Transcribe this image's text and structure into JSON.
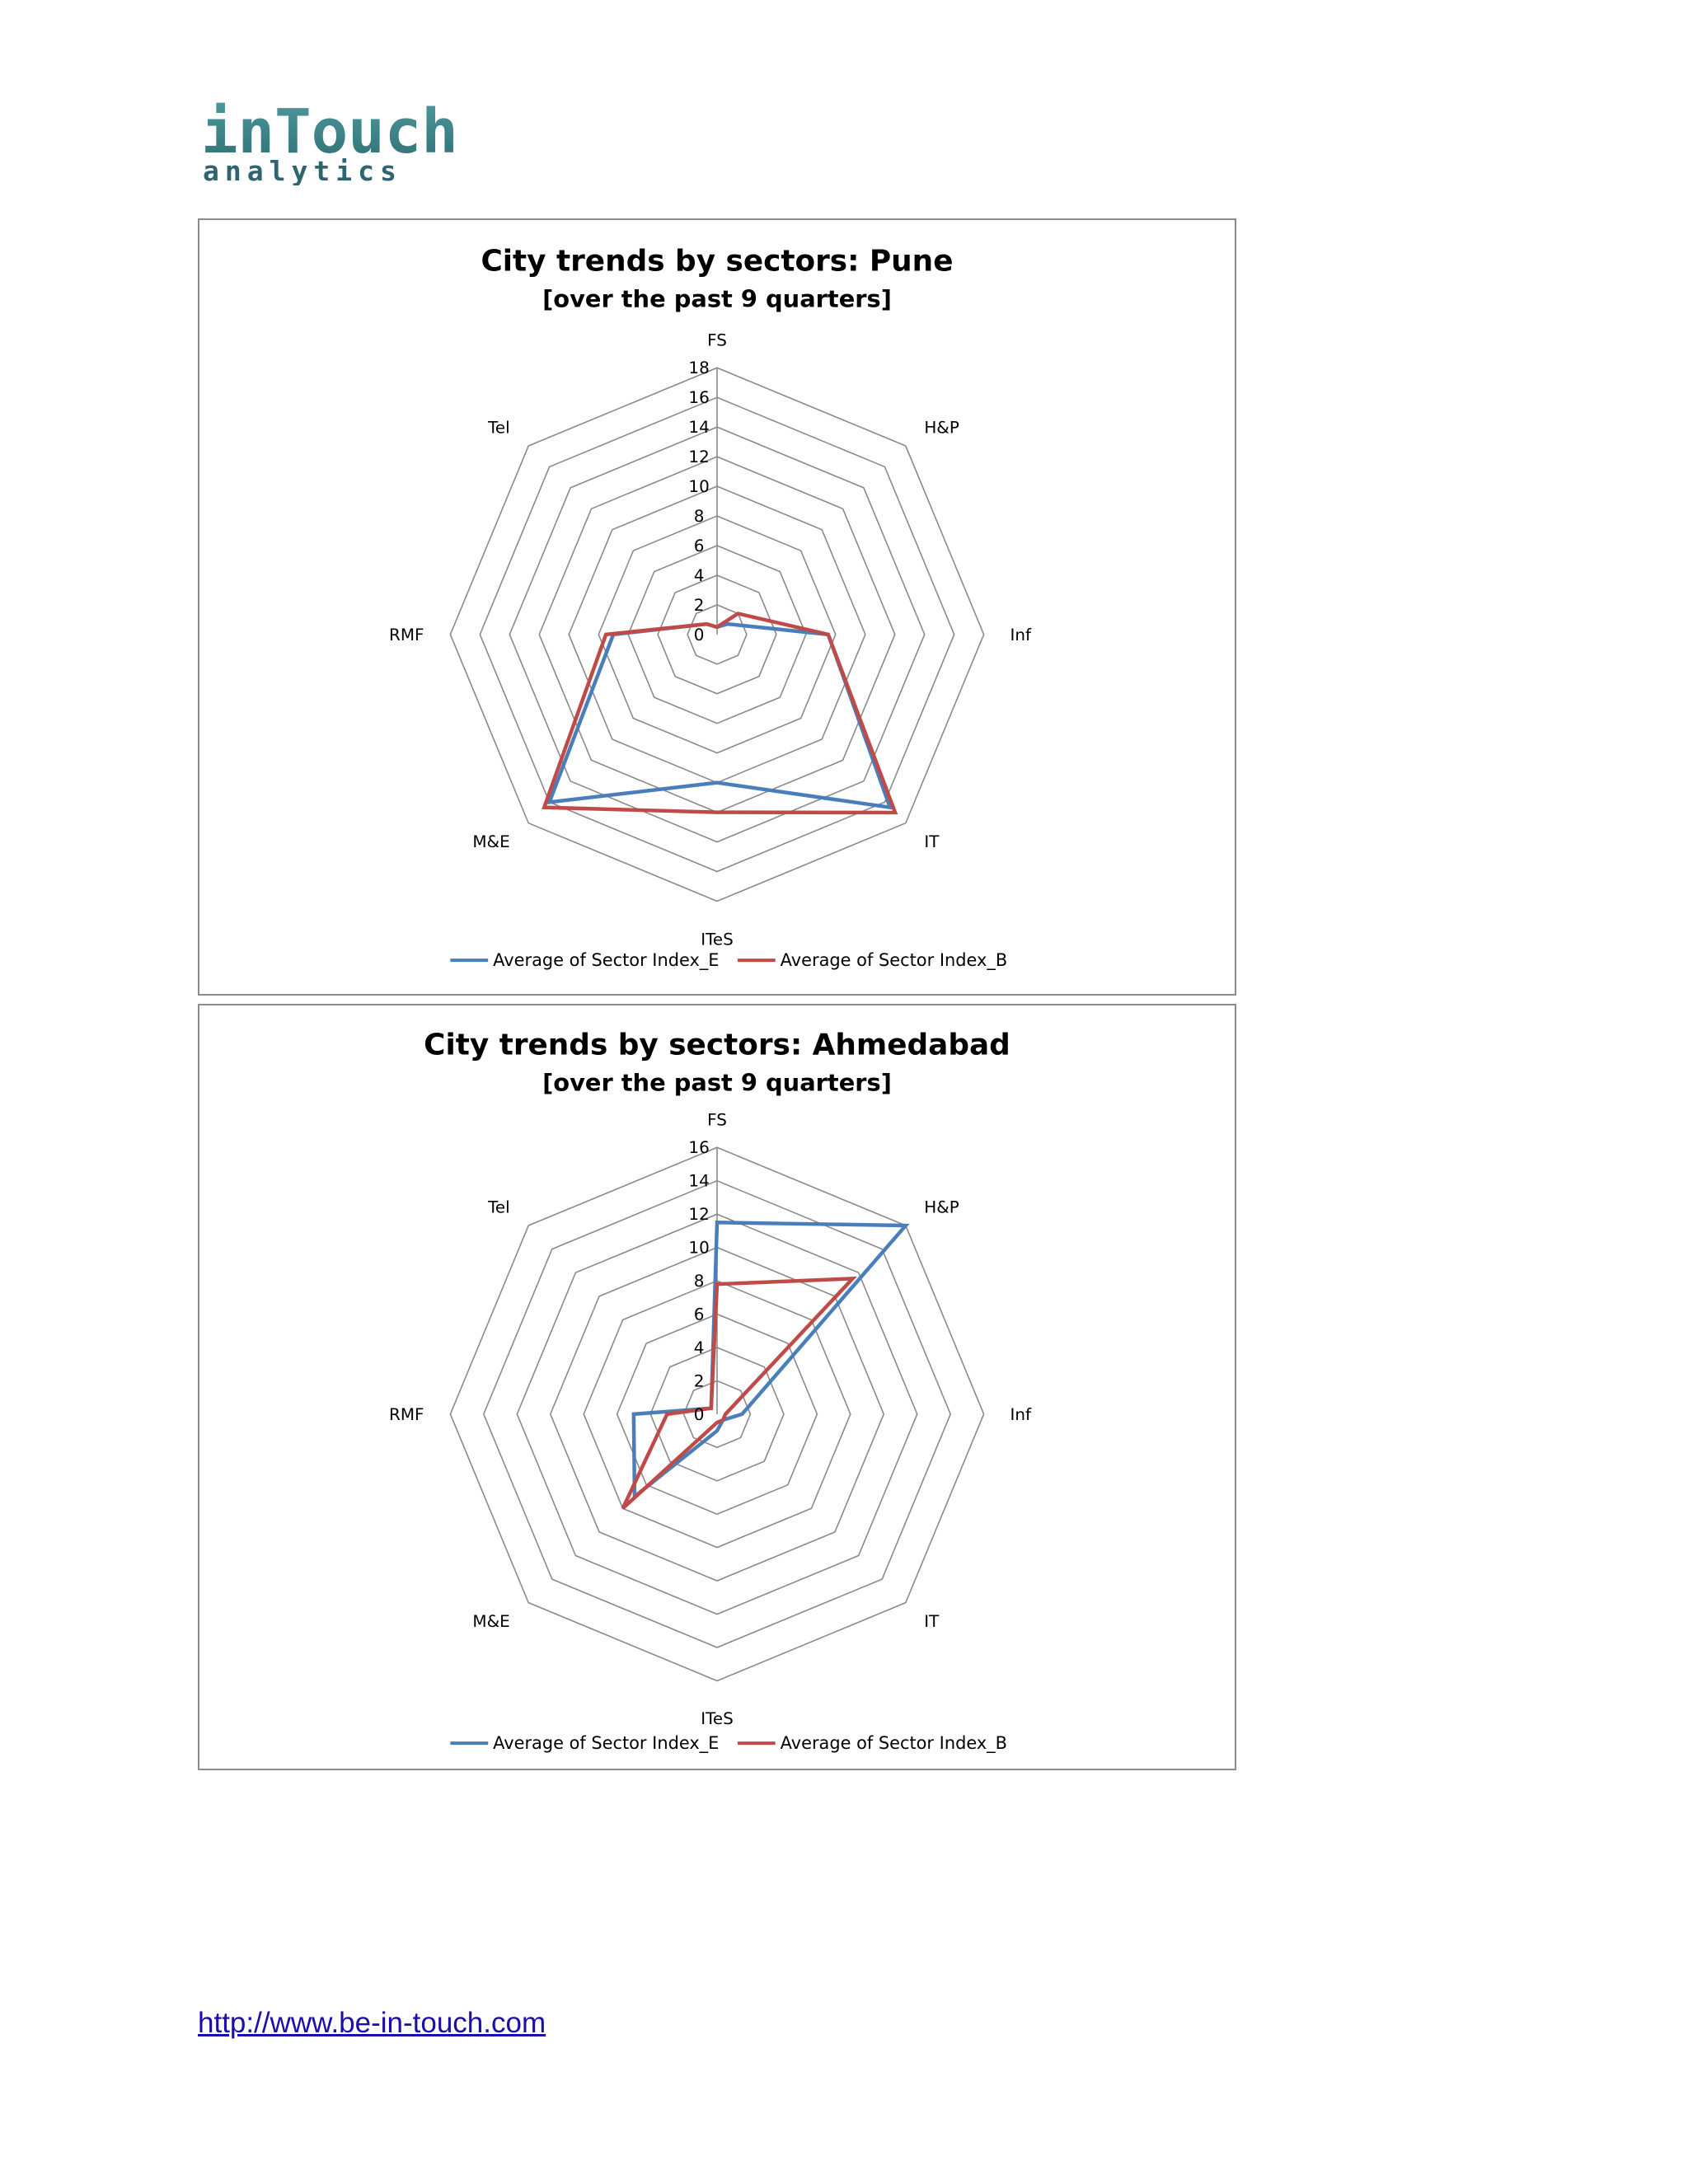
{
  "logo": {
    "line1": "inTouch",
    "line2": "analytics"
  },
  "footer": {
    "link_text": "http://www.be-in-touch.com"
  },
  "colors": {
    "series_e": "#4a7ebb",
    "series_b": "#be4b48",
    "grid": "#8a8a8a"
  },
  "chart_data": [
    {
      "type": "radar",
      "title": "City trends by sectors: Pune",
      "subtitle": "[over the past 9 quarters]",
      "categories": [
        "FS",
        "H&P",
        "Inf",
        "IT",
        "ITeS",
        "M&E",
        "RMF",
        "Tel"
      ],
      "ticks": [
        0,
        2,
        4,
        6,
        8,
        10,
        12,
        14,
        16,
        18
      ],
      "rlim": [
        0,
        18
      ],
      "grid": true,
      "legend_position": "bottom",
      "series": [
        {
          "name": "Average of Sector Index_E",
          "color": "#4a7ebb",
          "values": [
            0.5,
            1.0,
            7.5,
            16.5,
            10.0,
            16.0,
            7.0,
            1.0
          ]
        },
        {
          "name": "Average of Sector Index_B",
          "color": "#be4b48",
          "values": [
            0.5,
            2.0,
            7.5,
            17.0,
            12.0,
            16.5,
            7.5,
            1.0
          ]
        }
      ]
    },
    {
      "type": "radar",
      "title": "City trends by sectors: Ahmedabad",
      "subtitle": "[over the past 9 quarters]",
      "categories": [
        "FS",
        "H&P",
        "Inf",
        "IT",
        "ITeS",
        "M&E",
        "RMF",
        "Tel"
      ],
      "ticks": [
        0,
        2,
        4,
        6,
        8,
        10,
        12,
        14,
        16
      ],
      "rlim": [
        0,
        16
      ],
      "grid": true,
      "legend_position": "bottom",
      "series": [
        {
          "name": "Average of Sector Index_E",
          "color": "#4a7ebb",
          "values": [
            11.5,
            16.0,
            1.5,
            0.5,
            1.0,
            7.0,
            5.0,
            0.5
          ]
        },
        {
          "name": "Average of Sector Index_B",
          "color": "#be4b48",
          "values": [
            7.8,
            11.5,
            0.5,
            0.5,
            0.5,
            8.0,
            3.0,
            0.5
          ]
        }
      ]
    }
  ]
}
